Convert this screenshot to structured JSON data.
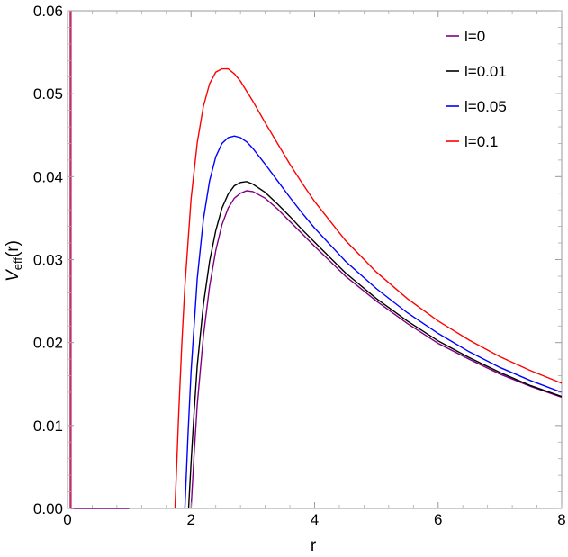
{
  "chart_data": {
    "type": "line",
    "xlabel": "r",
    "ylabel": {
      "base": "V",
      "sub": "eff",
      "tail": "(r)"
    },
    "xlim": [
      0,
      8
    ],
    "ylim": [
      0,
      0.06
    ],
    "xticks": [
      "0",
      "2",
      "4",
      "6",
      "8"
    ],
    "yticks": [
      "0.00",
      "0.01",
      "0.02",
      "0.03",
      "0.04",
      "0.05",
      "0.06"
    ],
    "legend_position": "top-right",
    "grid": false,
    "series": [
      {
        "name": "l=0",
        "color": "#800080",
        "x": [
          2.0,
          2.05,
          2.1,
          2.2,
          2.3,
          2.4,
          2.5,
          2.6,
          2.7,
          2.8,
          2.9,
          3.0,
          3.2,
          3.4,
          3.6,
          3.8,
          4.0,
          4.5,
          5.0,
          5.5,
          6.0,
          6.5,
          7.0,
          7.5,
          8.0
        ],
        "y": [
          0.0,
          0.0066,
          0.0125,
          0.0208,
          0.0268,
          0.0311,
          0.0342,
          0.0362,
          0.0374,
          0.038,
          0.0383,
          0.0382,
          0.0374,
          0.0361,
          0.0346,
          0.0331,
          0.0316,
          0.028,
          0.025,
          0.0223,
          0.0199,
          0.018,
          0.0162,
          0.0147,
          0.0134
        ]
      },
      {
        "name": "l=0.01",
        "color": "#000000",
        "x": [
          1.96,
          2.0,
          2.05,
          2.1,
          2.2,
          2.3,
          2.4,
          2.5,
          2.6,
          2.7,
          2.8,
          2.9,
          3.0,
          3.2,
          3.4,
          3.6,
          3.8,
          4.0,
          4.5,
          5.0,
          5.5,
          6.0,
          6.5,
          7.0,
          7.5,
          8.0
        ],
        "y": [
          0.0,
          0.0055,
          0.0117,
          0.0172,
          0.0246,
          0.0298,
          0.0335,
          0.0362,
          0.0379,
          0.0389,
          0.0393,
          0.0394,
          0.0391,
          0.0381,
          0.0367,
          0.0352,
          0.0336,
          0.0321,
          0.0284,
          0.0253,
          0.0226,
          0.0202,
          0.0182,
          0.0164,
          0.0148,
          0.0135
        ]
      },
      {
        "name": "l=0.05",
        "color": "#0000ff",
        "x": [
          1.9,
          1.95,
          2.0,
          2.1,
          2.2,
          2.3,
          2.4,
          2.5,
          2.6,
          2.7,
          2.8,
          2.9,
          3.0,
          3.2,
          3.4,
          3.6,
          3.8,
          4.0,
          4.5,
          5.0,
          5.5,
          6.0,
          6.5,
          7.0,
          7.5,
          8.0
        ],
        "y": [
          0.0,
          0.0088,
          0.0165,
          0.0277,
          0.0349,
          0.0395,
          0.0424,
          0.044,
          0.0447,
          0.0449,
          0.0447,
          0.0442,
          0.0434,
          0.0415,
          0.0395,
          0.0375,
          0.0356,
          0.0338,
          0.0298,
          0.0265,
          0.0236,
          0.0211,
          0.0189,
          0.017,
          0.0154,
          0.014
        ]
      },
      {
        "name": "l=0.1",
        "color": "#ff0000",
        "x": [
          1.74,
          1.8,
          1.85,
          1.9,
          2.0,
          2.1,
          2.2,
          2.3,
          2.4,
          2.5,
          2.6,
          2.7,
          2.8,
          2.9,
          3.0,
          3.2,
          3.4,
          3.6,
          3.8,
          4.0,
          4.5,
          5.0,
          5.5,
          6.0,
          6.5,
          7.0,
          7.5,
          8.0
        ],
        "y": [
          0.0,
          0.0115,
          0.0198,
          0.0268,
          0.0373,
          0.0441,
          0.0485,
          0.0512,
          0.0526,
          0.053,
          0.053,
          0.0524,
          0.0515,
          0.0503,
          0.0491,
          0.0465,
          0.044,
          0.0415,
          0.0392,
          0.037,
          0.0323,
          0.0285,
          0.0253,
          0.0226,
          0.0203,
          0.0183,
          0.0166,
          0.0151
        ]
      }
    ],
    "near_zero_line": {
      "color": "#c0306a",
      "x": 0.05
    },
    "flat_segment": {
      "color": "#800080",
      "x": [
        0.05,
        1.0
      ],
      "y": 0
    }
  }
}
